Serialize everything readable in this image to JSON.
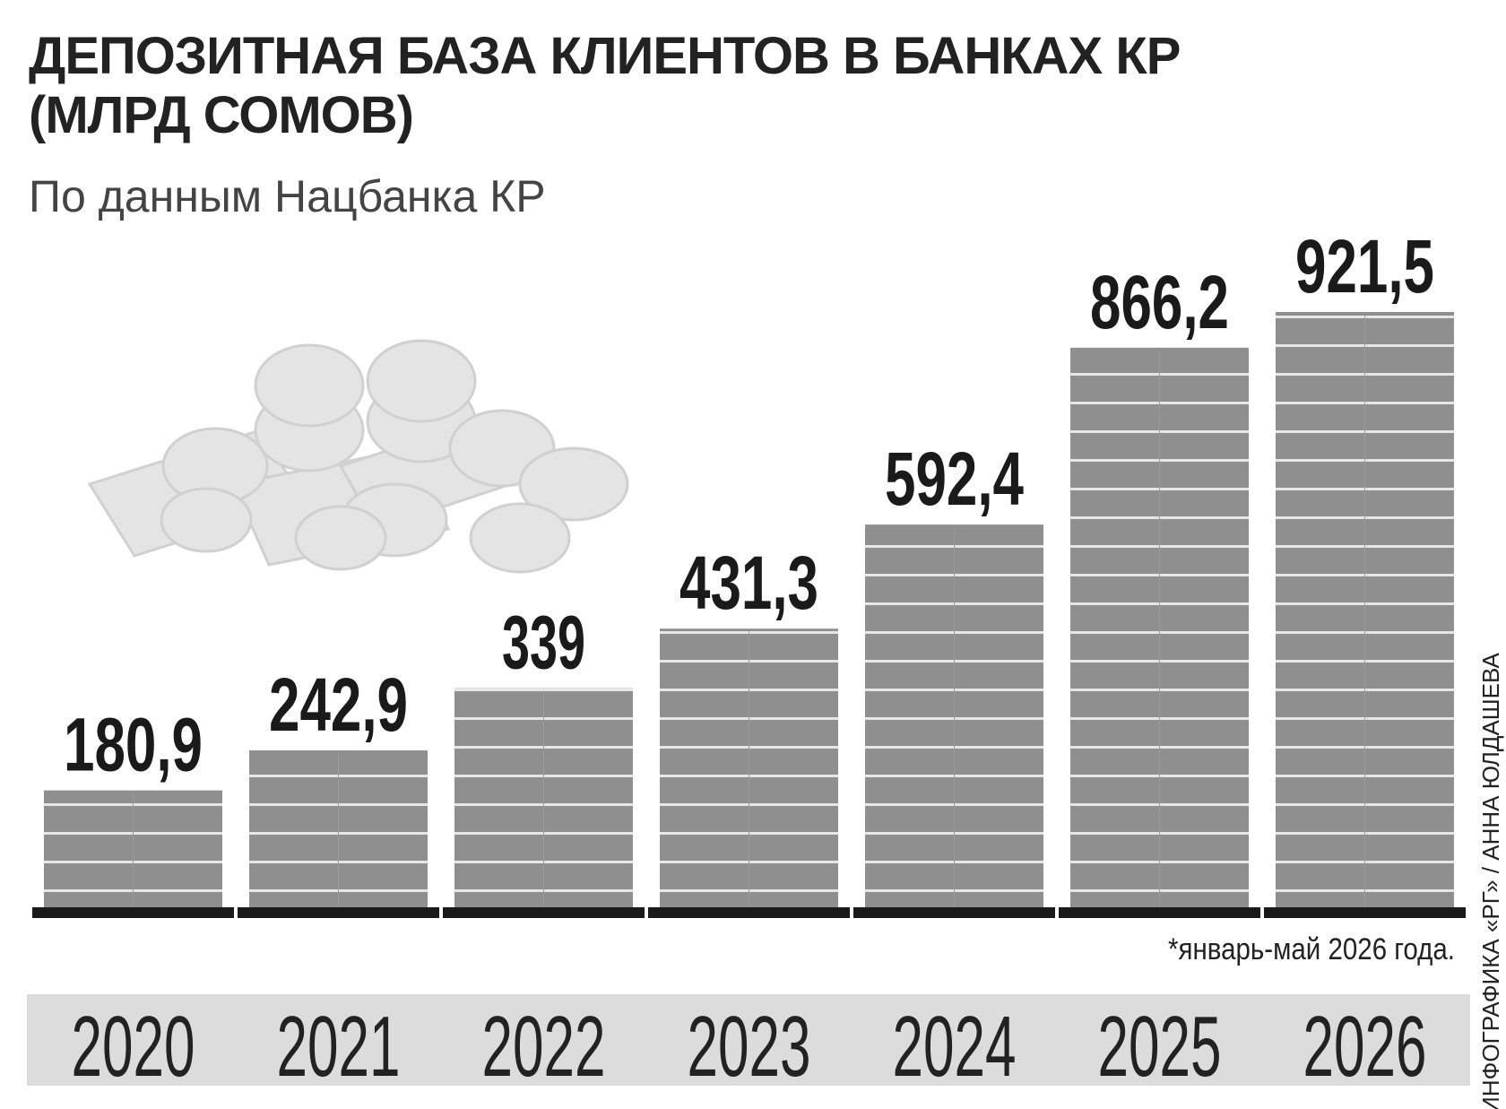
{
  "chart_data": {
    "type": "bar",
    "title": "ДЕПОЗИТНАЯ БАЗА КЛИЕНТОВ В БАНКАХ КР (МЛРД СОМОВ)",
    "subtitle": "По данным Нацбанка КР",
    "categories": [
      "2020",
      "2021",
      "2022",
      "2023",
      "2024",
      "2025",
      "2026"
    ],
    "values": [
      180.9,
      242.9,
      339,
      431.3,
      592.4,
      866.2,
      921.5
    ],
    "value_labels": [
      "180,9",
      "242,9",
      "339",
      "431,3",
      "592,4",
      "866,2",
      "921,5"
    ],
    "color": "#8f8f8f",
    "note": "*январь-май 2026 года.",
    "credit": "ИНФОГРАФИКА «РГ» / АННА ЮЛДАШЕВА"
  }
}
